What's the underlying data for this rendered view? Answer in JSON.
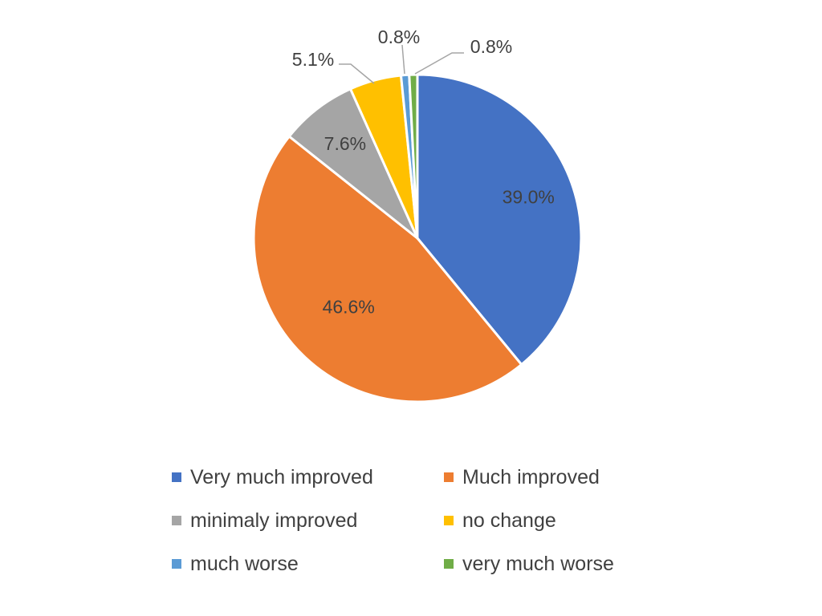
{
  "chart_data": {
    "type": "pie",
    "categories": [
      "Very much improved",
      "Much improved",
      "minimaly improved",
      "no change",
      "much worse",
      "very much worse"
    ],
    "values": [
      39.0,
      46.6,
      7.6,
      5.1,
      0.8,
      0.8
    ],
    "data_labels": [
      "39.0%",
      "46.6%",
      "7.6%",
      "5.1%",
      "0.8%",
      "0.8%"
    ],
    "colors": [
      "#4472C4",
      "#ED7D31",
      "#A5A5A5",
      "#FFC000",
      "#5B9BD5",
      "#70AD47"
    ],
    "start": "12 o'clock",
    "direction": "clockwise",
    "legend_position": "bottom"
  }
}
